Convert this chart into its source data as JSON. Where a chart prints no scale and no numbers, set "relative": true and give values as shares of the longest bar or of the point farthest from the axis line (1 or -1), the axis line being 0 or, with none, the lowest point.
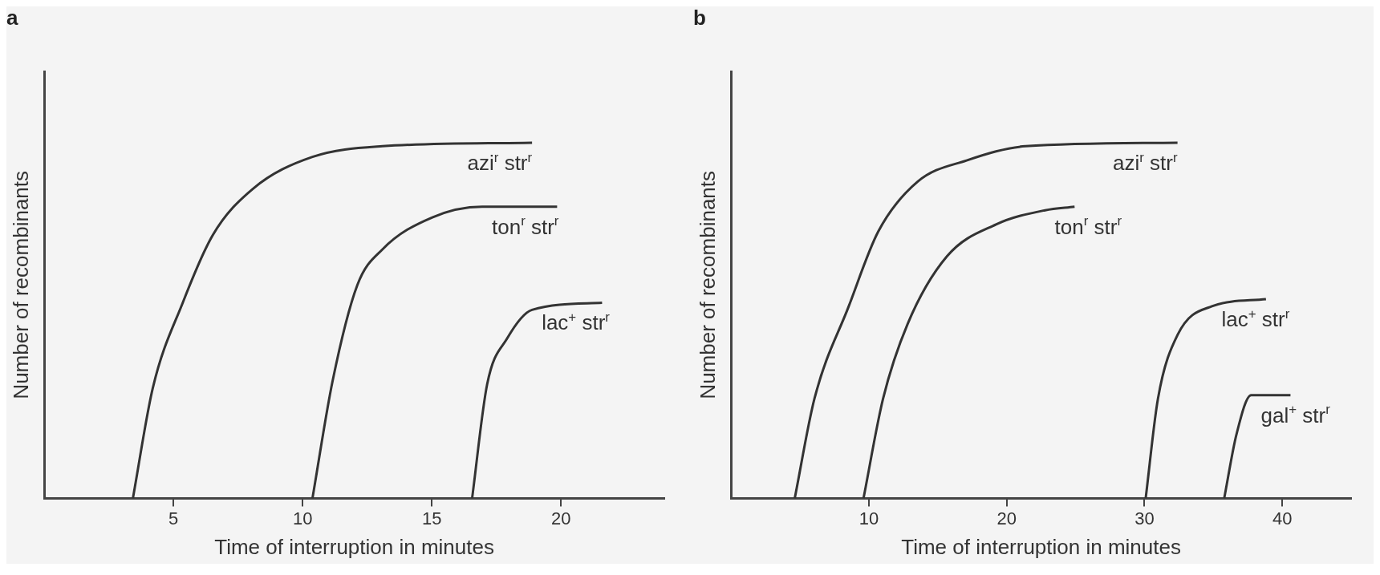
{
  "chart_data": [
    {
      "type": "line",
      "title": "a",
      "xlabel": "Time of interruption in minutes",
      "ylabel": "Number of recombinants",
      "relative": true,
      "xlim": [
        0,
        24
      ],
      "xticks": [
        5,
        10,
        15,
        20
      ],
      "grid": false,
      "legend": false,
      "marker": "none",
      "line_style": "solid",
      "series": [
        {
          "name": "azi$^{r}$ str$^{r}$",
          "color": "#333333",
          "x": [
            3.43,
            4.2,
            5.36,
            6.52,
            8.07,
            10.38,
            13.09,
            18.88
          ],
          "values": [
            0,
            0.31,
            0.55,
            0.74,
            0.87,
            0.96,
            0.99,
            1
          ]
        },
        {
          "name": "ton$^{r}$ str$^{r}$",
          "color": "#333333",
          "x": [
            10.38,
            11.16,
            12.12,
            13.09,
            15.02,
            16.95,
            19.85
          ],
          "values": [
            0,
            0.33,
            0.6,
            0.7,
            0.79,
            0.82,
            0.82
          ]
        },
        {
          "name": "lac$^{+}$ str$^{r}$",
          "color": "#333333",
          "x": [
            16.56,
            17.14,
            17.92,
            18.88,
            21.59
          ],
          "values": [
            0,
            0.32,
            0.45,
            0.53,
            0.55
          ]
        }
      ]
    },
    {
      "type": "line",
      "title": "b",
      "xlabel": "Time of interruption in minutes",
      "ylabel": "Number of recombinants",
      "relative": true,
      "xlim": [
        0,
        45
      ],
      "xticks": [
        10,
        20,
        30,
        40
      ],
      "grid": false,
      "legend": false,
      "marker": "none",
      "line_style": "solid",
      "series": [
        {
          "name": "azi$^{r}$ str$^{r}$",
          "color": "#333333",
          "x": [
            4.62,
            6.05,
            8.54,
            10.68,
            13.53,
            17.09,
            21.37,
            32.4
          ],
          "values": [
            0,
            0.28,
            0.54,
            0.75,
            0.89,
            0.95,
            0.99,
            1
          ]
        },
        {
          "name": "ton$^{r}$ str$^{r}$",
          "color": "#333333",
          "x": [
            9.61,
            11.03,
            12.81,
            15.66,
            19.23,
            22.79,
            24.93
          ],
          "values": [
            0,
            0.28,
            0.49,
            0.68,
            0.77,
            0.81,
            0.82
          ]
        },
        {
          "name": "lac$^{+}$ str$^{r}$",
          "color": "#333333",
          "x": [
            30.09,
            30.98,
            32.41,
            34.9,
            38.82
          ],
          "values": [
            0,
            0.28,
            0.46,
            0.54,
            0.56
          ]
        },
        {
          "name": "gal$^{+}$ str$^{r}$",
          "color": "#333333",
          "x": [
            35.79,
            36.68,
            37.75,
            40.6
          ],
          "values": [
            0,
            0.18,
            0.29,
            0.29
          ]
        }
      ]
    }
  ]
}
